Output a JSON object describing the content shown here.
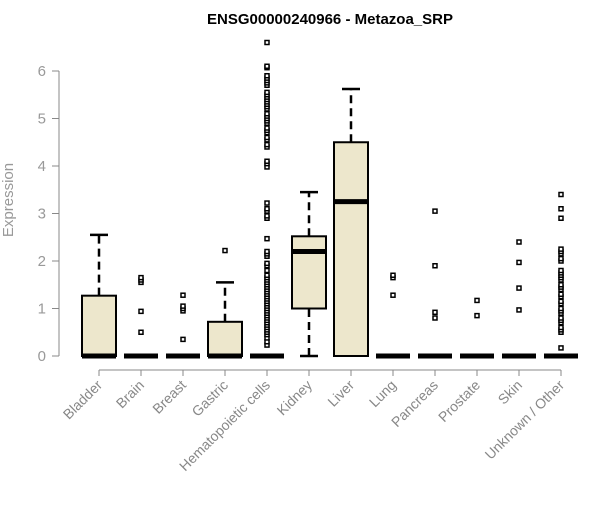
{
  "chart_data": {
    "type": "boxplot",
    "title": "ENSG00000240966 - Metazoa_SRP",
    "xlabel": "",
    "ylabel": "Expression",
    "ylim": [
      0,
      6.6
    ],
    "yticks": [
      "0",
      "1",
      "2",
      "3",
      "4",
      "5",
      "6"
    ],
    "grid": false,
    "box_color": "#ede7cc",
    "categories": [
      "Bladder",
      "Brain",
      "Breast",
      "Gastric",
      "Hematopoietic cells",
      "Kidney",
      "Liver",
      "Lung",
      "Pancreas",
      "Prostate",
      "Skin",
      "Unknown / Other"
    ],
    "boxes": [
      {
        "q1": 0,
        "median": 0,
        "q3": 1.27,
        "lo": 0,
        "hi": 2.55,
        "outliers": []
      },
      {
        "q1": 0,
        "median": 0,
        "q3": 0,
        "lo": 0,
        "hi": 0,
        "outliers": [
          0.5,
          0.94,
          1.55,
          1.6,
          1.65
        ]
      },
      {
        "q1": 0,
        "median": 0,
        "q3": 0,
        "lo": 0,
        "hi": 0,
        "outliers": [
          0.35,
          0.95,
          1.0,
          1.05,
          1.28
        ]
      },
      {
        "q1": 0,
        "median": 0,
        "q3": 0.72,
        "lo": 0,
        "hi": 1.55,
        "outliers": [
          2.22
        ]
      },
      {
        "q1": 0,
        "median": 0,
        "q3": 0,
        "lo": 0,
        "hi": 0,
        "outliers": [
          0.23,
          0.3,
          0.38,
          0.45,
          0.5,
          0.55,
          0.6,
          0.65,
          0.7,
          0.75,
          0.8,
          0.85,
          0.9,
          0.95,
          1.0,
          1.05,
          1.1,
          1.15,
          1.2,
          1.25,
          1.3,
          1.35,
          1.4,
          1.45,
          1.5,
          1.55,
          1.6,
          1.65,
          1.7,
          1.8,
          1.9,
          1.95,
          2.1,
          2.15,
          2.2,
          2.47,
          2.9,
          2.95,
          3.05,
          3.1,
          3.22,
          3.98,
          4.05,
          4.1,
          4.4,
          4.45,
          4.55,
          4.6,
          4.7,
          4.75,
          4.8,
          4.9,
          4.95,
          5.0,
          5.05,
          5.1,
          5.2,
          5.25,
          5.3,
          5.35,
          5.4,
          5.45,
          5.5,
          5.55,
          5.7,
          5.75,
          5.8,
          5.85,
          5.9,
          6.07,
          6.1,
          6.6
        ]
      },
      {
        "q1": 1.0,
        "median": 2.2,
        "q3": 2.52,
        "lo": 0,
        "hi": 3.45,
        "outliers": []
      },
      {
        "q1": 0,
        "median": 3.25,
        "q3": 4.5,
        "lo": 0,
        "hi": 5.62,
        "outliers": []
      },
      {
        "q1": 0,
        "median": 0,
        "q3": 0,
        "lo": 0,
        "hi": 0,
        "outliers": [
          1.28,
          1.65,
          1.7
        ]
      },
      {
        "q1": 0,
        "median": 0,
        "q3": 0,
        "lo": 0,
        "hi": 0,
        "outliers": [
          0.8,
          0.92,
          1.9,
          3.05
        ]
      },
      {
        "q1": 0,
        "median": 0,
        "q3": 0,
        "lo": 0,
        "hi": 0,
        "outliers": [
          0.85,
          1.17
        ]
      },
      {
        "q1": 0,
        "median": 0,
        "q3": 0,
        "lo": 0,
        "hi": 0,
        "outliers": [
          0.97,
          1.43,
          1.97,
          2.4
        ]
      },
      {
        "q1": 0,
        "median": 0,
        "q3": 0,
        "lo": 0,
        "hi": 0,
        "outliers": [
          0.17,
          0.5,
          0.55,
          0.6,
          0.7,
          0.75,
          0.8,
          0.9,
          0.95,
          1.0,
          1.1,
          1.15,
          1.25,
          1.3,
          1.4,
          1.45,
          1.5,
          1.6,
          1.65,
          1.7,
          1.75,
          1.8,
          2.0,
          2.05,
          2.15,
          2.2,
          2.25,
          2.9,
          3.1,
          3.4
        ]
      }
    ]
  }
}
